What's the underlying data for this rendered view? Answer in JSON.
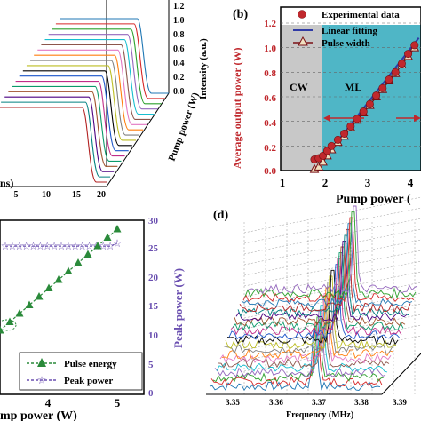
{
  "panels": {
    "a": {
      "x_label_fragment": "ns)",
      "x_ticks": [
        "5",
        "10",
        "15",
        "20"
      ],
      "z_label": "Intensity (a.u.)",
      "z_ticks": [
        "1.2",
        "1.0",
        "0.8",
        "0.6",
        "0.4",
        "0.2",
        "0.0"
      ],
      "depth_label": "Pump power (W)"
    },
    "b": {
      "tag": "(b)",
      "y_label": "Average output power (W)",
      "x_label": "Pump power (",
      "x_ticks": [
        "1",
        "2",
        "3",
        "4"
      ],
      "y_ticks": [
        "0.0",
        "0.2",
        "0.4",
        "0.6",
        "0.8",
        "1.0",
        "1.2"
      ],
      "region_cw": "CW",
      "region_ml": "ML",
      "legend": [
        "Experimental data",
        "Linear fitting",
        "Pulse width"
      ]
    },
    "c": {
      "y2_label": "Peak power (W)",
      "y2_ticks": [
        "0",
        "5",
        "10",
        "15",
        "20",
        "25",
        "30"
      ],
      "x_label": "mp power (W)",
      "x_ticks": [
        "4",
        "5"
      ],
      "legend": [
        "Pulse energy",
        "Peak power"
      ]
    },
    "d": {
      "tag": "(d)",
      "x_label": "Frequency (MHz)",
      "x_ticks": [
        "3.35",
        "3.36",
        "3.37",
        "3.38",
        "3.39"
      ]
    }
  },
  "colors": {
    "red": "#c0282d",
    "blue": "#2f3aa6",
    "green": "#2a8a3a",
    "purple": "#6a4fb0",
    "cyan_region": "#4fb6c6",
    "gray_region": "#c8c8c8"
  },
  "chart_data": [
    {
      "panel": "a",
      "type": "line",
      "x_ticks": [
        5,
        10,
        15,
        20
      ],
      "z_range": [
        0.0,
        1.2
      ],
      "series_count": 18,
      "description_values": "waterfall of normalized pulse traces, intensity ≈ 1.0 plateau"
    },
    {
      "panel": "b",
      "type": "scatter",
      "xlim": [
        1,
        4.2
      ],
      "ylim": [
        0.0,
        1.3
      ],
      "x": [
        1.75,
        1.85,
        1.95,
        2.05,
        2.15,
        2.3,
        2.45,
        2.6,
        2.75,
        2.9,
        3.05,
        3.2,
        3.35,
        3.5,
        3.65,
        3.8,
        3.95,
        4.1
      ],
      "experimental": [
        0.09,
        0.1,
        0.12,
        0.16,
        0.2,
        0.25,
        0.3,
        0.36,
        0.42,
        0.48,
        0.54,
        0.61,
        0.67,
        0.74,
        0.8,
        0.87,
        0.95,
        1.02
      ],
      "pulse_width": [
        0.01,
        0.03,
        0.07,
        0.12,
        0.17,
        0.23,
        0.28,
        0.35,
        0.41,
        0.47,
        0.53,
        0.6,
        0.66,
        0.73,
        0.79,
        0.86,
        0.93,
        1.0
      ],
      "fit_x": [
        1.8,
        4.2
      ],
      "fit_y": [
        0.02,
        1.08
      ],
      "cw_region": [
        1.0,
        1.85
      ],
      "ml_region": [
        1.85,
        4.2
      ]
    },
    {
      "panel": "c",
      "type": "line",
      "x_ticks": [
        4,
        5
      ],
      "y2lim": [
        0,
        30
      ],
      "peak_power": [
        25.5,
        25.5,
        25.5,
        25.5,
        25.5,
        25.5,
        25.5,
        25.5,
        25.5,
        25.5,
        25.5,
        25.5,
        25.5,
        25.5,
        25.5,
        25.5,
        26.0
      ],
      "pulse_energy_trend": "linear increase to ~28 on right axis scale"
    },
    {
      "panel": "d",
      "type": "line",
      "x": [
        3.35,
        3.36,
        3.37,
        3.38,
        3.39
      ],
      "peak_frequency_MHz": 3.37
    }
  ]
}
